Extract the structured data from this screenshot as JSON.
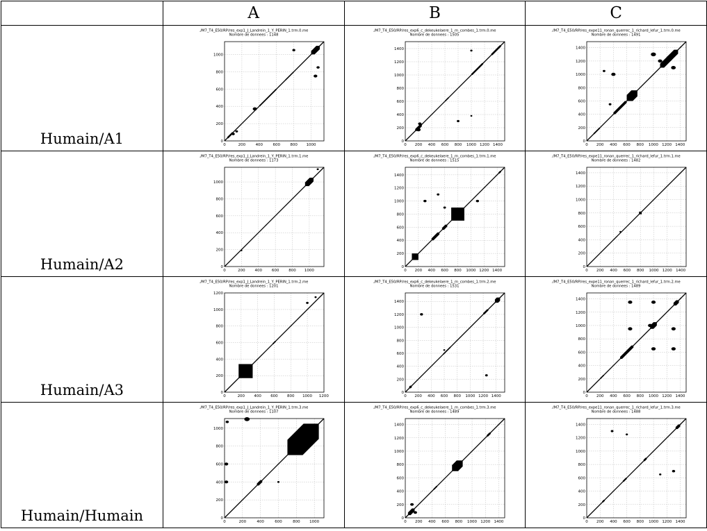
{
  "header": {
    "corner": "",
    "columns": [
      "A",
      "B",
      "C"
    ]
  },
  "rows": [
    {
      "label": "Humain/A1",
      "plots": [
        {
          "file": "./M7_T4_E50/RP/res_exp1_J_Landrein_1_Y_PERIN_1.trm.0.me",
          "count": "Nombre de donnees : 1148",
          "max": 1148,
          "ticks": [
            0,
            200,
            400,
            600,
            800,
            1000
          ],
          "blocks": [
            [
              30,
              100,
              14
            ],
            [
              400,
              600,
              10
            ],
            [
              620,
              760,
              6
            ],
            [
              1000,
              1100,
              40
            ],
            [
              700,
              800,
              8
            ]
          ],
          "dots": [
            [
              100,
              80,
              20
            ],
            [
              140,
              110,
              15
            ],
            [
              350,
              370,
              30
            ],
            [
              800,
              1050,
              18
            ],
            [
              1050,
              750,
              25
            ],
            [
              1080,
              850,
              20
            ]
          ]
        },
        {
          "file": "./M7_T4_E50/RP/res_exp6_c_dekeukelaere_1_m_combes_1.trm.0.me",
          "count": "Nombre de donnees : 1505",
          "max": 1505,
          "ticks": [
            0,
            200,
            400,
            600,
            800,
            1000,
            1200,
            1400
          ],
          "blocks": [
            [
              150,
              250,
              30
            ],
            [
              600,
              660,
              12
            ],
            [
              1000,
              1180,
              18
            ],
            [
              1300,
              1450,
              20
            ]
          ],
          "dots": [
            [
              200,
              170,
              40
            ],
            [
              220,
              260,
              30
            ],
            [
              1000,
              1370,
              15
            ],
            [
              800,
              300,
              20
            ],
            [
              1000,
              380,
              10
            ]
          ]
        },
        {
          "file": "./M7_T4_E50/RP/res_expe11_ronan_querrec_1_richard_lefur_1.trm.0.me",
          "count": "Nombre de donnees : 1491",
          "max": 1491,
          "ticks": [
            0,
            200,
            400,
            600,
            800,
            1000,
            1200,
            1400
          ],
          "blocks": [
            [
              100,
              200,
              14
            ],
            [
              400,
              600,
              28
            ],
            [
              600,
              760,
              90
            ],
            [
              1100,
              1280,
              60
            ],
            [
              1200,
              1370,
              60
            ]
          ],
          "dots": [
            [
              400,
              1000,
              40
            ],
            [
              1000,
              1300,
              50
            ],
            [
              1100,
              1200,
              40
            ],
            [
              1300,
              1100,
              45
            ],
            [
              260,
              1050,
              20
            ],
            [
              350,
              550,
              20
            ]
          ]
        }
      ]
    },
    {
      "label": "Humain/A2",
      "plots": [
        {
          "file": "./M7_T4_E50/RP/res_exp1_J_Landrein_1_Y_PERIN_1.trm.1.me",
          "count": "Nombre de donnees : 1173",
          "max": 1173,
          "ticks": [
            0,
            200,
            400,
            600,
            800,
            1000
          ],
          "blocks": [
            [
              480,
              500,
              6
            ],
            [
              950,
              1050,
              45
            ]
          ],
          "dots": [
            [
              200,
              190,
              6
            ],
            [
              1100,
              1150,
              10
            ]
          ]
        },
        {
          "file": "./M7_T4_E50/RP/res_exp6_c_dekeukelaere_1_m_combes_1.trm.1.me",
          "count": "Nombre de donnees : 1515",
          "max": 1515,
          "ticks": [
            0,
            200,
            400,
            600,
            800,
            1000,
            1200,
            1400
          ],
          "blocks": [
            [
              100,
              200,
              75
            ],
            [
              400,
              520,
              30
            ],
            [
              560,
              640,
              30
            ],
            [
              700,
              900,
              150
            ],
            [
              1420,
              1460,
              18
            ]
          ],
          "dots": [
            [
              300,
              1000,
              25
            ],
            [
              500,
              1100,
              20
            ],
            [
              1100,
              1000,
              25
            ],
            [
              600,
              900,
              20
            ]
          ]
        },
        {
          "file": "./M7_T4_E50/RP/res_expe11_ronan_querrec_1_richard_lefur_1.trm.1.me",
          "count": "Nombre de donnees : 1482",
          "max": 1482,
          "ticks": [
            0,
            200,
            400,
            600,
            800,
            1000,
            1200,
            1400
          ],
          "blocks": [
            [
              780,
              820,
              30
            ],
            [
              400,
              460,
              8
            ]
          ],
          "dots": [
            [
              500,
              520,
              8
            ]
          ]
        }
      ]
    },
    {
      "label": "Humain/A3",
      "plots": [
        {
          "file": "./M7_T4_E50/RP/res_exp1_J_Landrein_1_Y_PERIN_1.trm.2.me",
          "count": "Nombre de donnees : 1201",
          "max": 1201,
          "ticks": [
            0,
            200,
            400,
            600,
            800,
            1000,
            1200
          ],
          "blocks": [
            [
              170,
              340,
              135
            ],
            [
              580,
              620,
              10
            ]
          ],
          "dots": [
            [
              1000,
              1080,
              15
            ],
            [
              1100,
              1150,
              10
            ]
          ]
        },
        {
          "file": "./M7_T4_E50/RP/res_exp6_c_dekeukelaere_1_m_combes_1.trm.2.me",
          "count": "Nombre de donnees : 1531",
          "max": 1531,
          "ticks": [
            0,
            200,
            400,
            600,
            800,
            1000,
            1200,
            1400
          ],
          "blocks": [
            [
              60,
              100,
              25
            ],
            [
              580,
              700,
              12
            ],
            [
              1200,
              1280,
              20
            ],
            [
              1380,
              1460,
              50
            ]
          ],
          "dots": [
            [
              250,
              1200,
              25
            ],
            [
              1250,
              260,
              20
            ],
            [
              600,
              650,
              10
            ]
          ]
        },
        {
          "file": "./M7_T4_E50/RP/res_expe11_ronan_querrec_1_richard_lefur_1.trm.2.me",
          "count": "Nombre de donnees : 1489",
          "max": 1489,
          "ticks": [
            0,
            200,
            400,
            600,
            800,
            1000,
            1200,
            1400
          ],
          "blocks": [
            [
              200,
              260,
              12
            ],
            [
              500,
              700,
              30
            ],
            [
              950,
              1050,
              50
            ],
            [
              1300,
              1380,
              40
            ]
          ],
          "dots": [
            [
              650,
              1350,
              40
            ],
            [
              1000,
              1350,
              40
            ],
            [
              650,
              950,
              40
            ],
            [
              1000,
              650,
              40
            ],
            [
              1300,
              950,
              40
            ],
            [
              1300,
              650,
              40
            ],
            [
              950,
              1000,
              40
            ]
          ]
        }
      ]
    },
    {
      "label": "Humain/Humain",
      "plots": [
        {
          "file": "./M7_T4_E50/RP/res_exp1_J_Landrein_1_Y_PERIN_1.trm.3.me",
          "count": "Nombre de donnees : 1107",
          "max": 1107,
          "ticks": [
            0,
            200,
            400,
            600,
            800,
            1000
          ],
          "blocks": [
            [
              360,
              420,
              22
            ],
            [
              700,
              1050,
              170
            ]
          ],
          "dots": [
            [
              20,
              400,
              25
            ],
            [
              20,
              600,
              25
            ],
            [
              250,
              1100,
              40
            ],
            [
              30,
              1070,
              20
            ],
            [
              600,
              400,
              10
            ]
          ]
        },
        {
          "file": "./M7_T4_E50/RP/res_exp6_c_dekeukelaere_1_m_combes_1.trm.3.me",
          "count": "Nombre de donnees : 1489",
          "max": 1489,
          "ticks": [
            0,
            200,
            400,
            600,
            800,
            1000,
            1200,
            1400
          ],
          "blocks": [
            [
              40,
              140,
              40
            ],
            [
              420,
              480,
              14
            ],
            [
              700,
              860,
              90
            ],
            [
              1220,
              1280,
              20
            ]
          ],
          "dots": [
            [
              150,
              80,
              30
            ],
            [
              100,
              200,
              30
            ]
          ]
        },
        {
          "file": "./M7_T4_E50/RP/res_expe11_ronan_querrec_1_richard_lefur_1.trm.3.me",
          "count": "Nombre de donnees : 1488",
          "max": 1488,
          "ticks": [
            0,
            200,
            400,
            600,
            800,
            1000,
            1200,
            1400
          ],
          "blocks": [
            [
              230,
              270,
              16
            ],
            [
              540,
              600,
              16
            ],
            [
              850,
              900,
              20
            ],
            [
              1330,
              1400,
              30
            ]
          ],
          "dots": [
            [
              380,
              1300,
              20
            ],
            [
              1300,
              700,
              25
            ],
            [
              1100,
              650,
              15
            ],
            [
              600,
              1250,
              15
            ]
          ]
        }
      ]
    }
  ]
}
